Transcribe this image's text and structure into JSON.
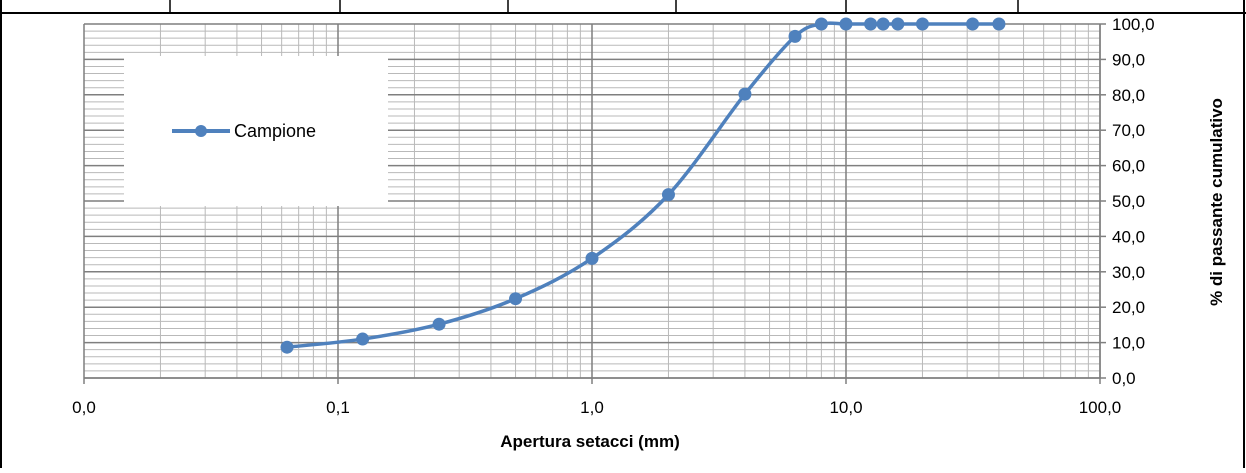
{
  "chart_data": {
    "type": "line",
    "x_scale": "log",
    "xlabel": "Apertura setacci (mm)",
    "ylabel": "% di passante cumulativo",
    "xlim": [
      0.01,
      100
    ],
    "ylim": [
      0,
      100
    ],
    "x_ticks": [
      0.01,
      0.1,
      1,
      10,
      100
    ],
    "x_tick_labels": [
      "0,0",
      "0,1",
      "1,0",
      "10,0",
      "100,0"
    ],
    "y_ticks": [
      0,
      10,
      20,
      30,
      40,
      50,
      60,
      70,
      80,
      90,
      100
    ],
    "y_tick_labels": [
      "0,0",
      "10,0",
      "20,0",
      "30,0",
      "40,0",
      "50,0",
      "60,0",
      "70,0",
      "80,0",
      "90,0",
      "100,0"
    ],
    "grid": true,
    "legend_position": "top-left",
    "series": [
      {
        "name": "Campione",
        "color": "#4F81BD",
        "x": [
          0.063,
          0.125,
          0.25,
          0.5,
          1,
          2,
          4,
          6.3,
          8,
          10,
          12.5,
          14,
          16,
          20,
          31.5,
          40
        ],
        "y": [
          8.7,
          11.0,
          15.2,
          22.4,
          33.8,
          51.8,
          80.2,
          96.5,
          100,
          100,
          100,
          100,
          100,
          100,
          100,
          100
        ]
      }
    ]
  }
}
